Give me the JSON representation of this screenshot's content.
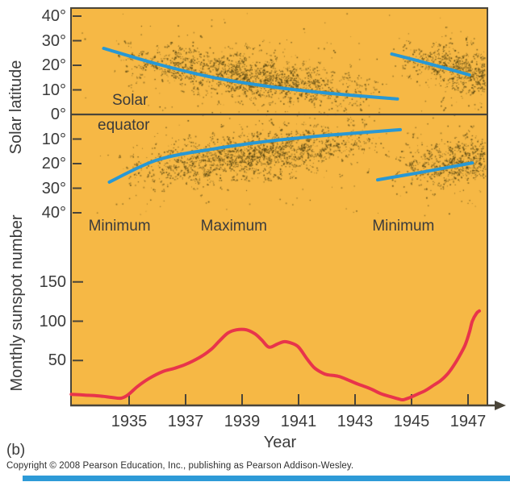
{
  "figure_label": "(b)",
  "copyright": "Copyright © 2008 Pearson Education, Inc., publishing as Pearson Addison-Wesley.",
  "colors": {
    "plot_background": "#F6B845",
    "axis": "#4A4539",
    "trend_blue": "#2898D4",
    "curve_red": "#E8344B",
    "scatter_dot": "#5C4A14",
    "text": "#3B3B3B",
    "footer_bar_blue": "#2D9AD7"
  },
  "chart_data": [
    {
      "type": "scatter",
      "name": "sunspot-butterfly-diagram",
      "ylabel": "Solar latitude",
      "equator_label_line1": "Solar",
      "equator_label_line2": "equator",
      "y_ticks": [
        {
          "lat": 40,
          "label": "40°"
        },
        {
          "lat": 30,
          "label": "30°"
        },
        {
          "lat": 20,
          "label": "20°"
        },
        {
          "lat": 10,
          "label": "10°"
        },
        {
          "lat": 0,
          "label": "0°"
        },
        {
          "lat": -10,
          "label": "10°"
        },
        {
          "lat": -20,
          "label": "20°"
        },
        {
          "lat": -30,
          "label": "30°"
        },
        {
          "lat": -40,
          "label": "40°"
        }
      ],
      "phase_labels": [
        {
          "text": "Minimum",
          "year": 1934.66
        },
        {
          "text": "Maximum",
          "year": 1938.71
        },
        {
          "text": "Minimum",
          "year": 1944.71
        }
      ],
      "trend_lines": [
        {
          "name": "north-old-cycle",
          "points": [
            [
              1934.1,
              26.9
            ],
            [
              1936.0,
              20.5
            ],
            [
              1938.0,
              15.0
            ],
            [
              1940.0,
              11.3
            ],
            [
              1942.0,
              8.7
            ],
            [
              1944.5,
              6.3
            ]
          ]
        },
        {
          "name": "north-new-cycle",
          "points": [
            [
              1944.3,
              24.6
            ],
            [
              1945.7,
              20.4
            ],
            [
              1947.05,
              16.1
            ]
          ]
        },
        {
          "name": "south-old-cycle",
          "points": [
            [
              1934.3,
              -27.5
            ],
            [
              1936.0,
              -18.5
            ],
            [
              1938.0,
              -14.0
            ],
            [
              1940.0,
              -10.8
            ],
            [
              1942.0,
              -8.5
            ],
            [
              1944.6,
              -6.2
            ]
          ]
        },
        {
          "name": "south-new-cycle",
          "points": [
            [
              1943.8,
              -26.6
            ],
            [
              1945.5,
              -23.2
            ],
            [
              1947.15,
              -19.7
            ]
          ]
        }
      ],
      "scatter": {
        "seed": 7,
        "clusters": [
          {
            "name": "north-main",
            "year_start": 1934.4,
            "year_end": 1944.2,
            "lat_start": 23,
            "lat_end": 8,
            "count": 950,
            "lat_sd": 4.2,
            "clump": 0.55,
            "bias": "mid"
          },
          {
            "name": "north-main-halo",
            "year_start": 1934.2,
            "year_end": 1944.2,
            "lat_start": 23,
            "lat_end": 8,
            "count": 220,
            "lat_sd": 8.5,
            "clump": 0.2,
            "bias": "mid"
          },
          {
            "name": "north-new",
            "year_start": 1944.6,
            "year_end": 1947.6,
            "lat_start": 25,
            "lat_end": 15,
            "count": 380,
            "lat_sd": 4.5,
            "clump": 0.5,
            "bias": "end"
          },
          {
            "name": "north-new-halo",
            "year_start": 1944.5,
            "year_end": 1947.6,
            "lat_start": 25,
            "lat_end": 15,
            "count": 90,
            "lat_sd": 8.0,
            "clump": 0.2,
            "bias": "end"
          },
          {
            "name": "south-main",
            "year_start": 1934.5,
            "year_end": 1944.2,
            "lat_start": -24,
            "lat_end": -9,
            "count": 950,
            "lat_sd": 4.2,
            "clump": 0.55,
            "bias": "mid"
          },
          {
            "name": "south-main-halo",
            "year_start": 1934.3,
            "year_end": 1944.2,
            "lat_start": -24,
            "lat_end": -9,
            "count": 220,
            "lat_sd": 8.5,
            "clump": 0.2,
            "bias": "mid"
          },
          {
            "name": "south-new",
            "year_start": 1944.2,
            "year_end": 1947.6,
            "lat_start": -24,
            "lat_end": -17,
            "count": 380,
            "lat_sd": 4.5,
            "clump": 0.5,
            "bias": "end"
          },
          {
            "name": "south-new-halo",
            "year_start": 1944.1,
            "year_end": 1947.6,
            "lat_start": -24,
            "lat_end": -17,
            "count": 90,
            "lat_sd": 8.0,
            "clump": 0.2,
            "bias": "end"
          },
          {
            "name": "background",
            "year_start": 1933.1,
            "year_end": 1947.6,
            "lat_start": 0,
            "lat_end": 0,
            "count": 130,
            "lat_sd": 0,
            "clump": 0,
            "bias": "uniform"
          }
        ]
      }
    },
    {
      "type": "line",
      "name": "monthly-sunspot-number",
      "ylabel": "Monthly sunspot number",
      "xlabel": "Year",
      "x_ticks": [
        {
          "year": 1935,
          "label": "1935"
        },
        {
          "year": 1937,
          "label": "1937"
        },
        {
          "year": 1939,
          "label": "1939"
        },
        {
          "year": 1941,
          "label": "1941"
        },
        {
          "year": 1943,
          "label": "1943"
        },
        {
          "year": 1945,
          "label": "1945"
        },
        {
          "year": 1947,
          "label": "1947"
        }
      ],
      "y_ticks": [
        {
          "value": 150,
          "label": "150"
        },
        {
          "value": 100,
          "label": "100"
        },
        {
          "value": 50,
          "label": "50"
        }
      ],
      "ylim": [
        0,
        165
      ],
      "x_range": [
        1933,
        1947.75
      ],
      "series": [
        {
          "name": "monthly sunspot number",
          "points": [
            [
              1932.95,
              7
            ],
            [
              1933.4,
              6
            ],
            [
              1933.9,
              5
            ],
            [
              1934.4,
              3
            ],
            [
              1934.7,
              2
            ],
            [
              1934.95,
              6
            ],
            [
              1935.3,
              17
            ],
            [
              1935.7,
              27
            ],
            [
              1936.2,
              36
            ],
            [
              1936.6,
              40
            ],
            [
              1937.0,
              45
            ],
            [
              1937.5,
              54
            ],
            [
              1937.9,
              64
            ],
            [
              1938.2,
              75
            ],
            [
              1938.5,
              85
            ],
            [
              1938.8,
              89
            ],
            [
              1939.15,
              89
            ],
            [
              1939.45,
              84
            ],
            [
              1939.7,
              76
            ],
            [
              1939.95,
              67
            ],
            [
              1940.25,
              71
            ],
            [
              1940.5,
              74
            ],
            [
              1940.75,
              72
            ],
            [
              1941.0,
              67
            ],
            [
              1941.3,
              52
            ],
            [
              1941.55,
              41
            ],
            [
              1941.8,
              35
            ],
            [
              1942.0,
              32
            ],
            [
              1942.4,
              30
            ],
            [
              1942.7,
              26
            ],
            [
              1943.1,
              20
            ],
            [
              1943.55,
              14
            ],
            [
              1943.9,
              8
            ],
            [
              1944.25,
              4
            ],
            [
              1944.55,
              1
            ],
            [
              1944.7,
              0
            ],
            [
              1944.95,
              3
            ],
            [
              1945.2,
              7
            ],
            [
              1945.5,
              12
            ],
            [
              1945.8,
              19
            ],
            [
              1946.05,
              25
            ],
            [
              1946.3,
              34
            ],
            [
              1946.5,
              44
            ],
            [
              1946.7,
              56
            ],
            [
              1946.9,
              70
            ],
            [
              1947.05,
              86
            ],
            [
              1947.15,
              100
            ],
            [
              1947.3,
              110
            ],
            [
              1947.4,
              113
            ]
          ]
        }
      ]
    }
  ]
}
